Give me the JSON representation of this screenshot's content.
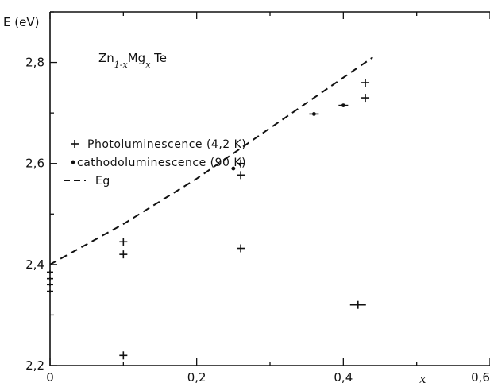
{
  "chart_data": {
    "type": "scatter",
    "title": "",
    "xlabel": "x",
    "ylabel": "E (eV)",
    "xlim": [
      0,
      0.6
    ],
    "ylim": [
      2.2,
      2.9
    ],
    "x_ticks": [
      "0",
      "0,2",
      "0,4",
      "0,6"
    ],
    "y_ticks": [
      "2,2",
      "2,4",
      "2,6",
      "2,8"
    ],
    "grid": false,
    "legend_position": "upper-left",
    "annotation": {
      "base": "Zn",
      "sub1": "1-x",
      "mid": "Mg",
      "sub2": "x",
      "end": " Te"
    },
    "series": [
      {
        "name": "Photoluminescence (4,2 K)",
        "marker": "plus",
        "points": [
          {
            "x": 0.1,
            "y": 2.445
          },
          {
            "x": 0.1,
            "y": 2.42
          },
          {
            "x": 0.1,
            "y": 2.22
          },
          {
            "x": 0.26,
            "y": 2.6
          },
          {
            "x": 0.26,
            "y": 2.577
          },
          {
            "x": 0.26,
            "y": 2.432
          },
          {
            "x": 0.43,
            "y": 2.76
          },
          {
            "x": 0.43,
            "y": 2.73
          },
          {
            "x": 0.42,
            "y": 2.32
          },
          {
            "x": 0.0,
            "y": 2.385
          },
          {
            "x": 0.0,
            "y": 2.372
          },
          {
            "x": 0.0,
            "y": 2.36
          },
          {
            "x": 0.0,
            "y": 2.347
          }
        ]
      },
      {
        "name": "cathodoluminescence (90 K)",
        "marker": "dot",
        "points": [
          {
            "x": 0.25,
            "y": 2.59
          },
          {
            "x": 0.36,
            "y": 2.698
          },
          {
            "x": 0.4,
            "y": 2.715
          }
        ]
      },
      {
        "name": "Eg",
        "marker": "dashed-line",
        "points": [
          {
            "x": 0.0,
            "y": 2.4
          },
          {
            "x": 0.1,
            "y": 2.48
          },
          {
            "x": 0.2,
            "y": 2.57
          },
          {
            "x": 0.3,
            "y": 2.67
          },
          {
            "x": 0.44,
            "y": 2.81
          }
        ]
      }
    ]
  }
}
